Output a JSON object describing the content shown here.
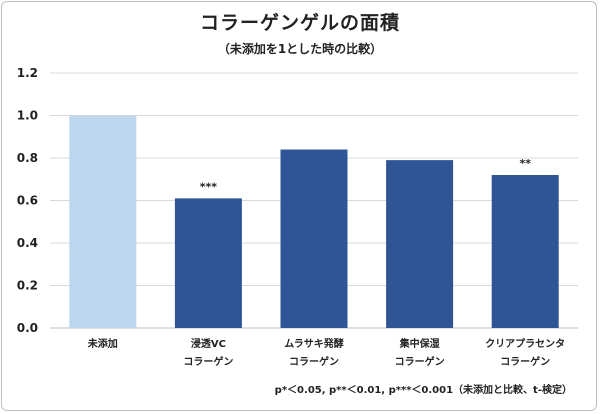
{
  "chart_data": {
    "type": "bar",
    "title": "コラーゲンゲルの面積",
    "subtitle": "（未添加を1とした時の比較）",
    "categories": [
      {
        "line1": "未添加",
        "line2": ""
      },
      {
        "line1": "浸透VC",
        "line2": "コラーゲン"
      },
      {
        "line1": "ムラサキ発酵",
        "line2": "コラーゲン"
      },
      {
        "line1": "集中保湿",
        "line2": "コラーゲン"
      },
      {
        "line1": "クリアプラセンタ",
        "line2": "コラーゲン"
      }
    ],
    "values": [
      1.0,
      0.61,
      0.84,
      0.79,
      0.72
    ],
    "significance": [
      "",
      "***",
      "",
      "",
      "**"
    ],
    "colors": [
      "#bdd7ee",
      "#2f5597",
      "#2f5597",
      "#2f5597",
      "#2f5597"
    ],
    "ylim": [
      0,
      1.2
    ],
    "yticks": [
      "0.0",
      "0.2",
      "0.4",
      "0.6",
      "0.8",
      "1.0",
      "1.2"
    ],
    "ytick_values": [
      0,
      0.2,
      0.4,
      0.6,
      0.8,
      1.0,
      1.2
    ],
    "grid": true,
    "xlabel": "",
    "ylabel": "",
    "footnote": "p*＜0.05, p**＜0.01, p***＜0.001（未添加と比較、t-検定）"
  }
}
